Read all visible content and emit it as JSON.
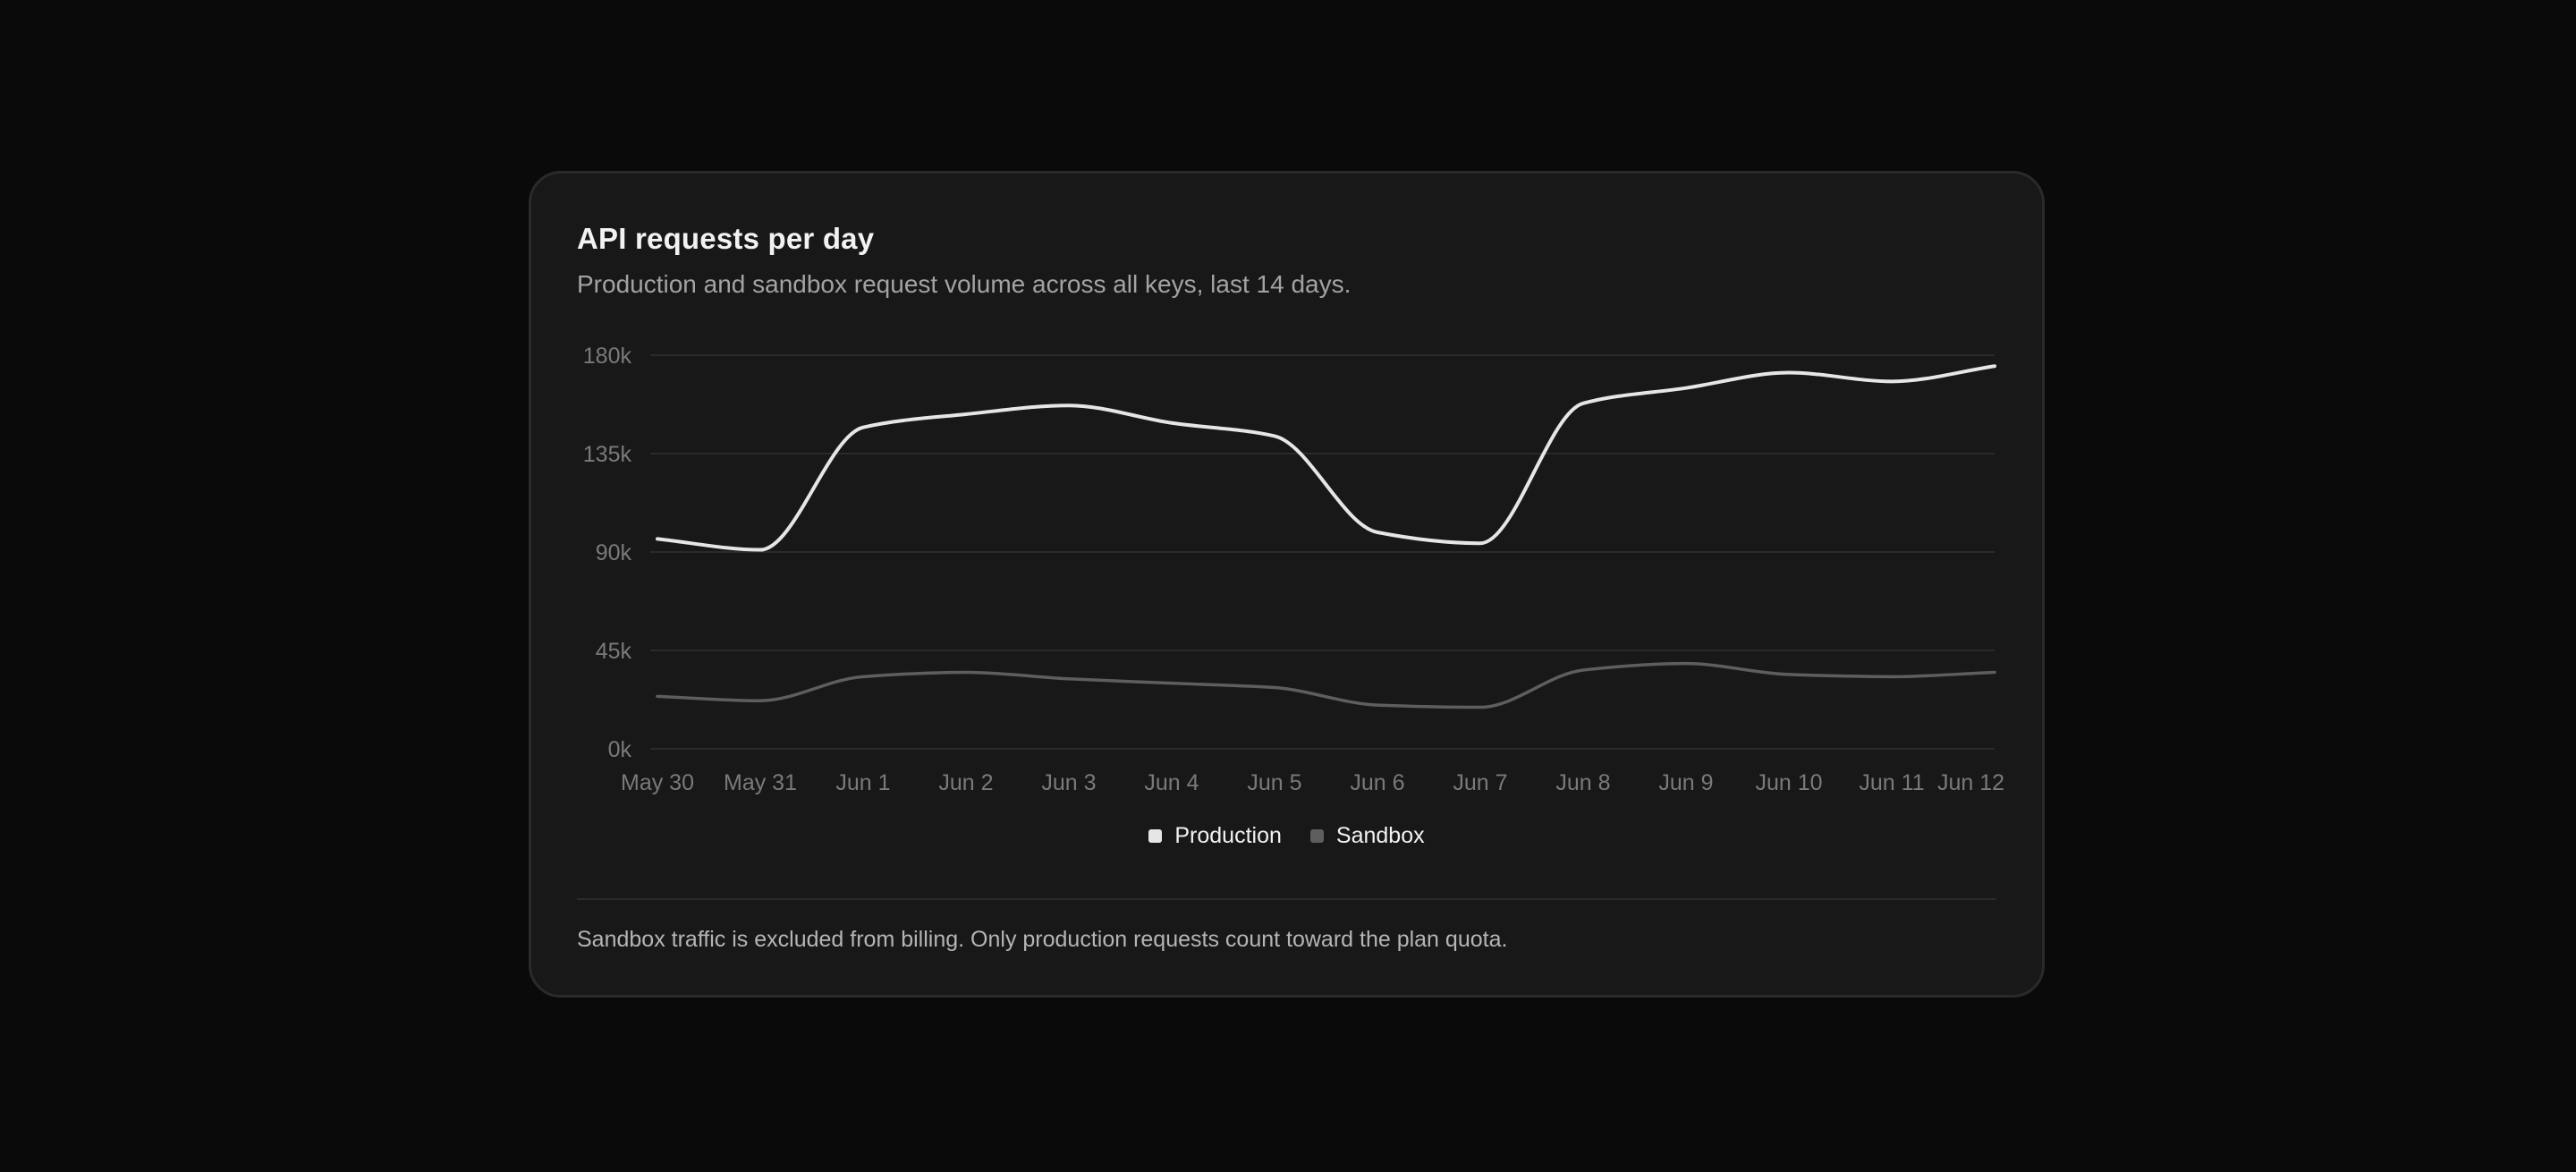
{
  "card": {
    "title": "API requests per day",
    "subtitle": "Production and sandbox request volume across all keys, last 14 days.",
    "footnote": "Sandbox traffic is excluded from billing. Only production requests count toward the plan quota."
  },
  "chart_data": {
    "type": "line",
    "title": "API requests per day",
    "subtitle": "Production and sandbox request volume across all keys, last 14 days.",
    "xlabel": "",
    "ylabel": "",
    "x": [
      "May 30",
      "May 31",
      "Jun 1",
      "Jun 2",
      "Jun 3",
      "Jun 4",
      "Jun 5",
      "Jun 6",
      "Jun 7",
      "Jun 8",
      "Jun 9",
      "Jun 10",
      "Jun 11",
      "Jun 12"
    ],
    "y_ticks": [
      "0k",
      "45k",
      "90k",
      "135k",
      "180k"
    ],
    "ylim": [
      0,
      180000
    ],
    "grid": true,
    "legend_position": "bottom-center",
    "series": [
      {
        "name": "Production",
        "color": "#e6e6e6",
        "values": [
          96000,
          91000,
          147000,
          153000,
          157000,
          149000,
          143000,
          99000,
          94000,
          158000,
          165000,
          172000,
          168000,
          175000
        ]
      },
      {
        "name": "Sandbox",
        "color": "#5e5e5e",
        "values": [
          24000,
          22000,
          33000,
          35000,
          32000,
          30000,
          28000,
          20000,
          19000,
          36000,
          39000,
          34000,
          33000,
          35000
        ]
      }
    ]
  }
}
